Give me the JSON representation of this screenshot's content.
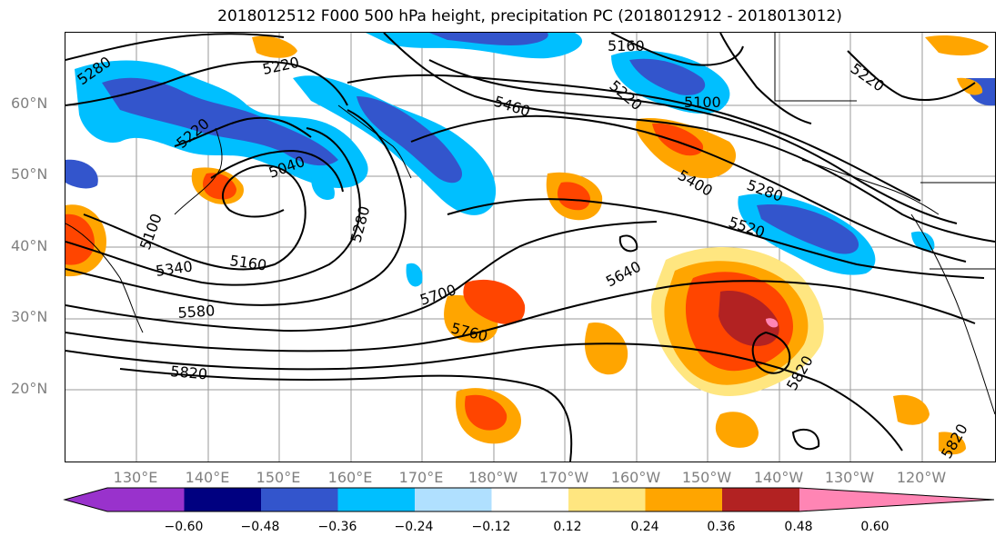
{
  "title": "2018012512 F000 500 hPa height, precipitation PC (2018012912 - 2018013012)",
  "lat_labels": [
    "60°N",
    "50°N",
    "40°N",
    "30°N",
    "20°N"
  ],
  "lon_labels": [
    "130°E",
    "140°E",
    "150°E",
    "160°E",
    "170°E",
    "180°W",
    "170°W",
    "160°W",
    "150°W",
    "140°W",
    "130°W",
    "120°W"
  ],
  "contour_labels": [
    "5280",
    "5220",
    "5160",
    "5460",
    "5220",
    "5100",
    "5220",
    "5220",
    "5040",
    "5400",
    "5280",
    "5100",
    "5520",
    "5280",
    "5160",
    "5340",
    "5640",
    "5700",
    "5580",
    "5760",
    "5820",
    "5820",
    "5820"
  ],
  "colorbar": {
    "tick_labels": [
      "−0.60",
      "−0.48",
      "−0.36",
      "−0.24",
      "−0.12",
      "0.12",
      "0.24",
      "0.36",
      "0.48",
      "0.60"
    ],
    "colors": [
      "#9932cc",
      "#000080",
      "#3355cc",
      "#00bfff",
      "#b0e0ff",
      "#ffffff",
      "#ffe680",
      "#ffa500",
      "#ff4500",
      "#b22222",
      "#ff85b4"
    ]
  },
  "colors": {
    "neg_strong": "#3355cc",
    "neg_mid": "#00bfff",
    "neg_light": "#b0e0ff",
    "pos_light": "#ffe680",
    "pos_mid": "#ffa500",
    "pos_strong": "#ff4500",
    "pos_dark": "#b22222",
    "pos_max": "#ff85b4"
  }
}
